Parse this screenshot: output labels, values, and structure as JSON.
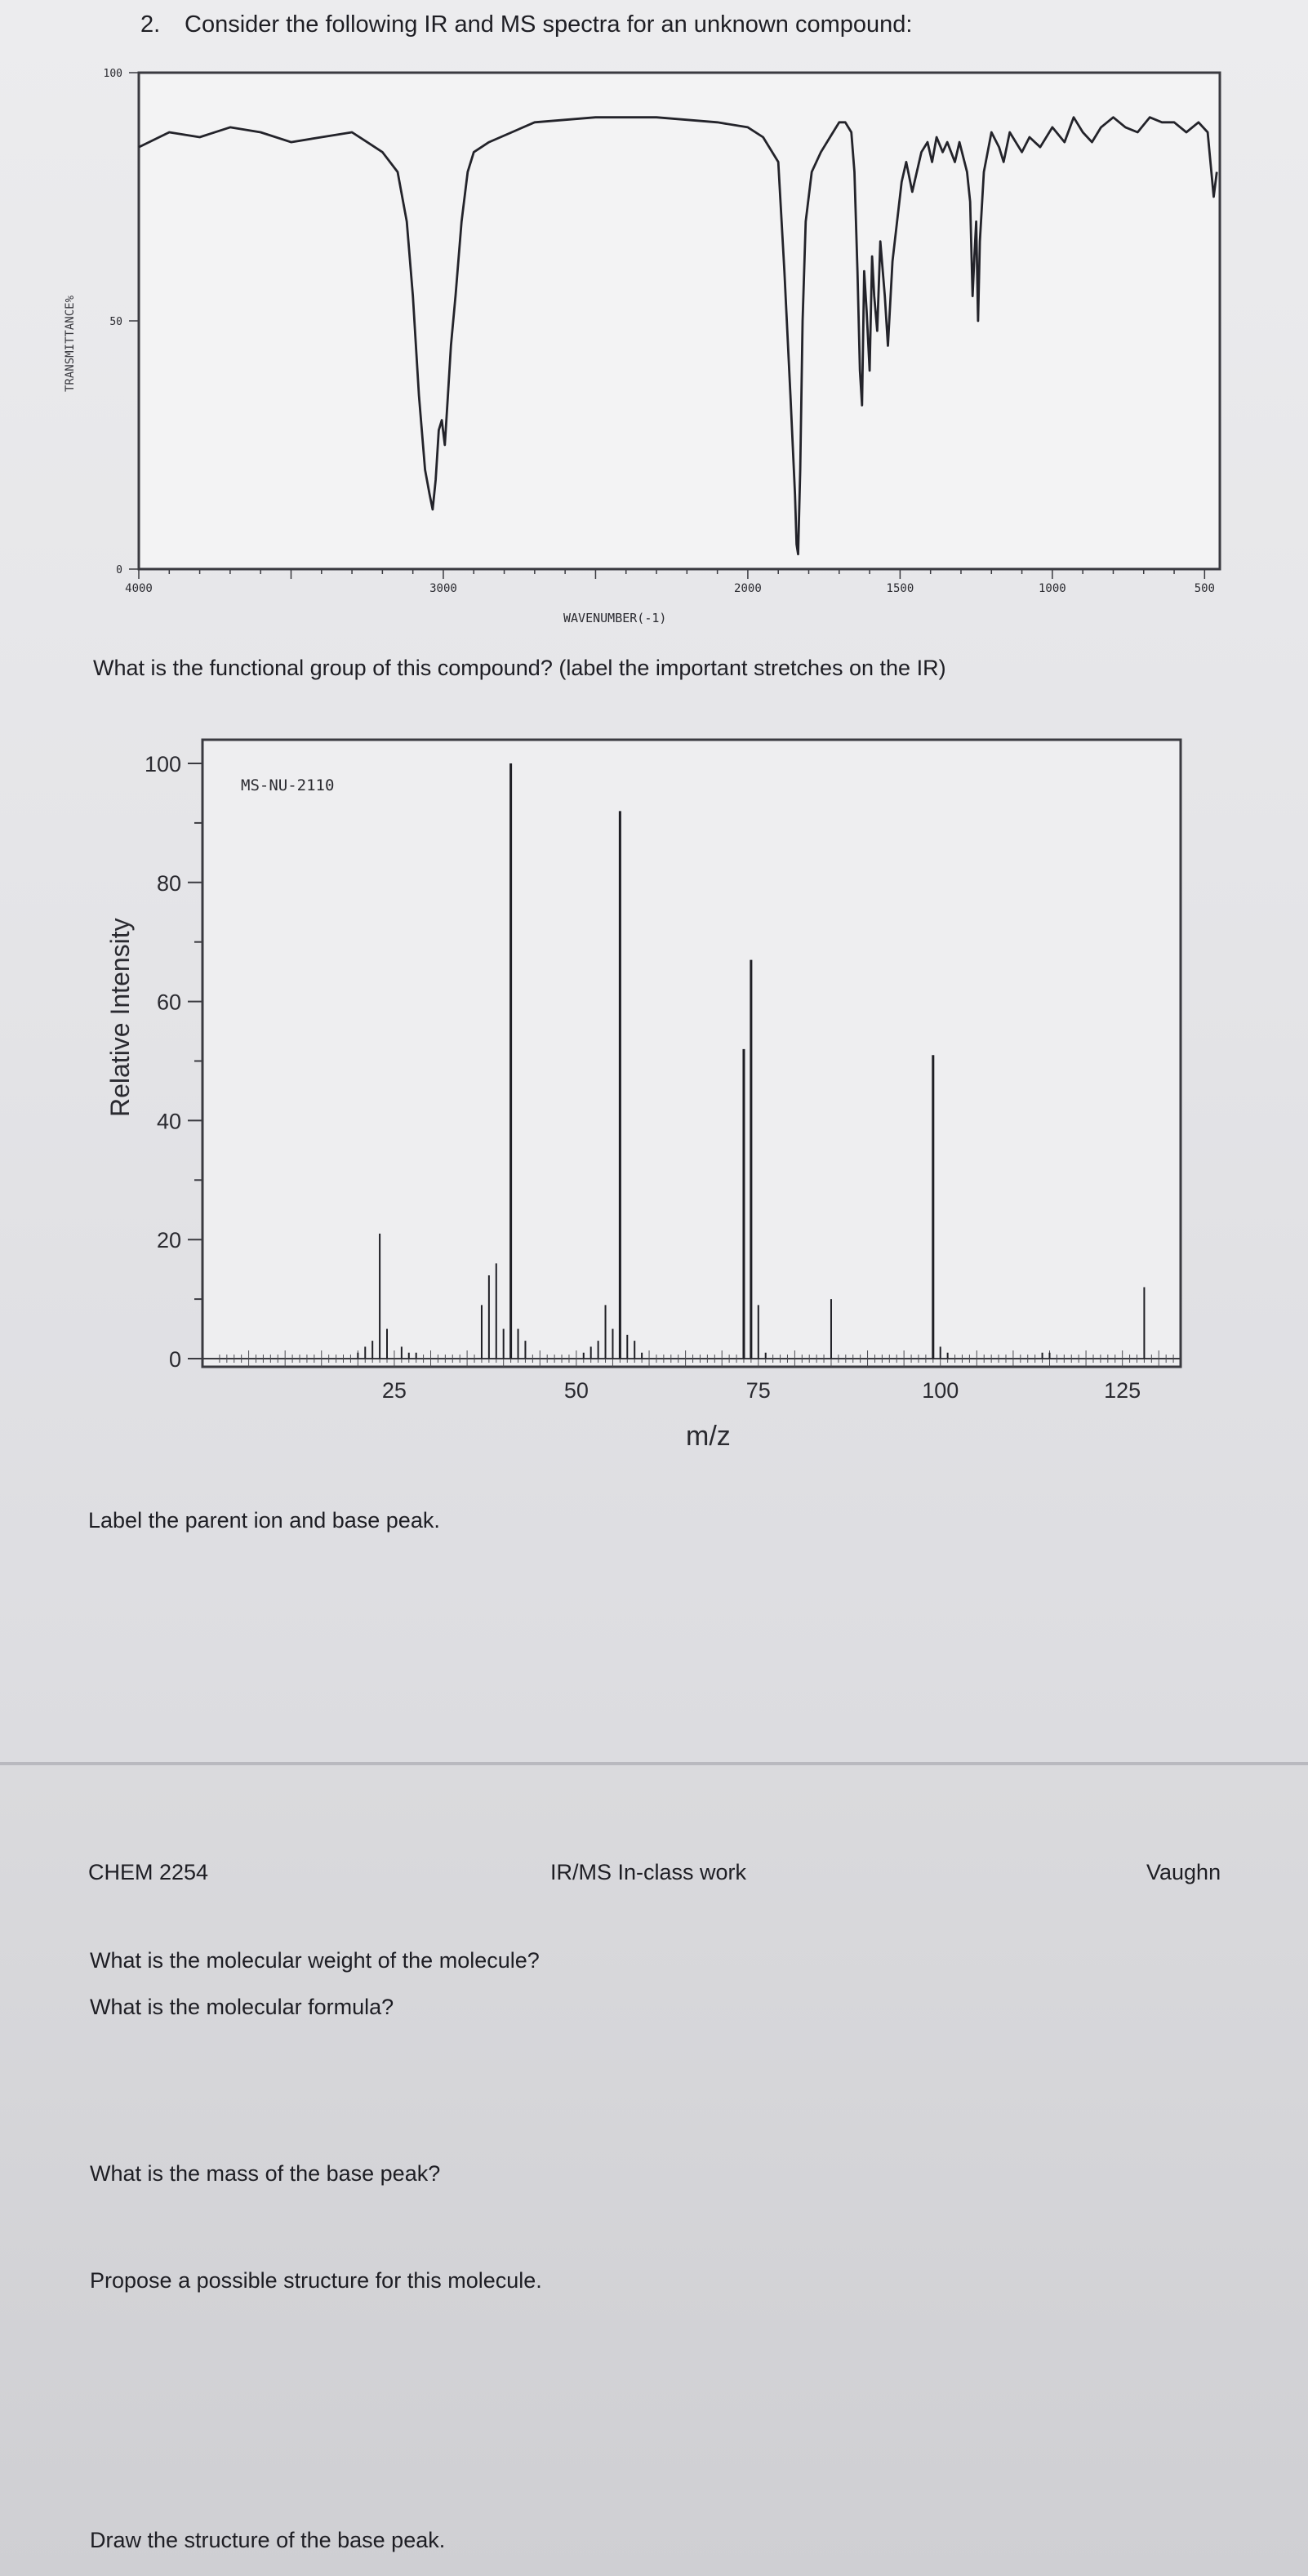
{
  "question": {
    "number": "2.",
    "text": "Consider the following IR and MS spectra for an unknown compound:"
  },
  "ir_question": "What is the functional group of this compound? (label the important stretches on the IR)",
  "ms_prompt": "Label the parent ion and base peak.",
  "footer": {
    "course": "CHEM 2254",
    "title": "IR/MS In-class work",
    "instructor": "Vaughn"
  },
  "questions_page2": [
    "What is the molecular weight of the molecule?",
    "What is the molecular formula?",
    "What is the mass of the base peak?",
    "Propose a possible structure for this molecule.",
    "Draw the structure of the base peak."
  ],
  "colors": {
    "ink": "#1e1e24",
    "plot_background": "#f3f3f4"
  },
  "chart_data": [
    {
      "type": "line",
      "ylabel": "TRANSMITTANCE%",
      "xlabel": "WAVENUMBER(-1)",
      "xlim": [
        4000,
        450
      ],
      "ylim": [
        0,
        100
      ],
      "y_ticks": [
        "100",
        "50",
        "0"
      ],
      "x_ticks": [
        "4000",
        "3000",
        "2000",
        "1500",
        "1000",
        "500"
      ],
      "series": [
        {
          "points": [
            [
              4000,
              85
            ],
            [
              3900,
              88
            ],
            [
              3800,
              87
            ],
            [
              3700,
              89
            ],
            [
              3600,
              88
            ],
            [
              3500,
              86
            ],
            [
              3400,
              87
            ],
            [
              3300,
              88
            ],
            [
              3250,
              86
            ],
            [
              3200,
              84
            ],
            [
              3150,
              80
            ],
            [
              3120,
              70
            ],
            [
              3100,
              55
            ],
            [
              3080,
              35
            ],
            [
              3060,
              20
            ],
            [
              3045,
              15
            ],
            [
              3035,
              12
            ],
            [
              3025,
              18
            ],
            [
              3015,
              28
            ],
            [
              3005,
              30
            ],
            [
              2995,
              25
            ],
            [
              2985,
              35
            ],
            [
              2975,
              45
            ],
            [
              2960,
              55
            ],
            [
              2940,
              70
            ],
            [
              2920,
              80
            ],
            [
              2900,
              84
            ],
            [
              2850,
              86
            ],
            [
              2700,
              90
            ],
            [
              2500,
              91
            ],
            [
              2300,
              91
            ],
            [
              2100,
              90
            ],
            [
              2000,
              89
            ],
            [
              1950,
              87
            ],
            [
              1900,
              82
            ],
            [
              1880,
              60
            ],
            [
              1860,
              35
            ],
            [
              1845,
              15
            ],
            [
              1840,
              5
            ],
            [
              1835,
              3
            ],
            [
              1828,
              20
            ],
            [
              1820,
              50
            ],
            [
              1810,
              70
            ],
            [
              1790,
              80
            ],
            [
              1760,
              84
            ],
            [
              1730,
              87
            ],
            [
              1700,
              90
            ],
            [
              1680,
              90
            ],
            [
              1660,
              88
            ],
            [
              1650,
              80
            ],
            [
              1640,
              60
            ],
            [
              1632,
              40
            ],
            [
              1625,
              33
            ],
            [
              1618,
              60
            ],
            [
              1610,
              52
            ],
            [
              1600,
              40
            ],
            [
              1592,
              63
            ],
            [
              1585,
              55
            ],
            [
              1575,
              48
            ],
            [
              1565,
              66
            ],
            [
              1550,
              55
            ],
            [
              1540,
              45
            ],
            [
              1525,
              62
            ],
            [
              1510,
              70
            ],
            [
              1495,
              78
            ],
            [
              1480,
              82
            ],
            [
              1460,
              76
            ],
            [
              1445,
              80
            ],
            [
              1430,
              84
            ],
            [
              1410,
              86
            ],
            [
              1395,
              82
            ],
            [
              1380,
              87
            ],
            [
              1360,
              84
            ],
            [
              1345,
              86
            ],
            [
              1320,
              82
            ],
            [
              1305,
              86
            ],
            [
              1280,
              80
            ],
            [
              1270,
              74
            ],
            [
              1262,
              55
            ],
            [
              1256,
              63
            ],
            [
              1250,
              70
            ],
            [
              1244,
              50
            ],
            [
              1238,
              66
            ],
            [
              1225,
              80
            ],
            [
              1200,
              88
            ],
            [
              1175,
              85
            ],
            [
              1160,
              82
            ],
            [
              1140,
              88
            ],
            [
              1100,
              84
            ],
            [
              1075,
              87
            ],
            [
              1040,
              85
            ],
            [
              1000,
              89
            ],
            [
              960,
              86
            ],
            [
              930,
              91
            ],
            [
              900,
              88
            ],
            [
              870,
              86
            ],
            [
              840,
              89
            ],
            [
              800,
              91
            ],
            [
              760,
              89
            ],
            [
              720,
              88
            ],
            [
              680,
              91
            ],
            [
              640,
              90
            ],
            [
              600,
              90
            ],
            [
              560,
              88
            ],
            [
              520,
              90
            ],
            [
              490,
              88
            ],
            [
              470,
              75
            ],
            [
              460,
              80
            ]
          ]
        }
      ]
    },
    {
      "type": "bar",
      "annotation": "MS-NU-2110",
      "xlabel": "m/z",
      "ylabel": "Relative Intensity",
      "xlim": [
        0,
        133
      ],
      "ylim": [
        0,
        100
      ],
      "x_ticks": [
        "25",
        "50",
        "75",
        "100",
        "125"
      ],
      "y_ticks": [
        "0",
        "20",
        "40",
        "60",
        "80",
        "100"
      ],
      "x": [
        20,
        21,
        22,
        23,
        24,
        26,
        27,
        28,
        37,
        38,
        39,
        40,
        41,
        42,
        43,
        51,
        52,
        53,
        54,
        55,
        56,
        57,
        58,
        59,
        73,
        74,
        75,
        76,
        85,
        99,
        100,
        101,
        114,
        115,
        128
      ],
      "values": [
        1,
        2,
        3,
        21,
        5,
        2,
        1,
        1,
        9,
        14,
        16,
        5,
        100,
        5,
        3,
        1,
        2,
        3,
        9,
        5,
        92,
        4,
        3,
        1,
        52,
        67,
        9,
        1,
        10,
        51,
        2,
        1,
        1,
        1,
        12
      ]
    }
  ]
}
